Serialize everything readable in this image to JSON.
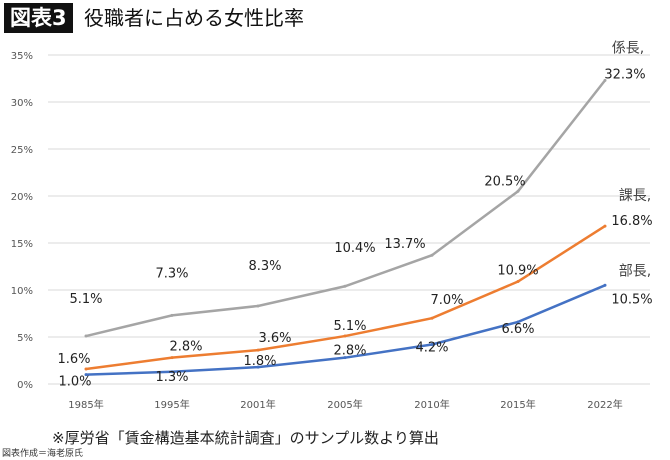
{
  "header": {
    "tag": "図表3",
    "title": "役職者に占める女性比率"
  },
  "footer": {
    "note": "※厚労省「賃金構造基本統計調査」のサンプル数より算出",
    "credit": "図表作成＝海老原氏"
  },
  "chart_data": {
    "type": "line",
    "title": "役職者に占める女性比率",
    "categories": [
      "1985年",
      "1995年",
      "2001年",
      "2005年",
      "2010年",
      "2015年",
      "2022年"
    ],
    "yticks": [
      "0%",
      "5%",
      "10%",
      "15%",
      "20%",
      "25%",
      "30%",
      "35%"
    ],
    "ylim": [
      0,
      35
    ],
    "grid": true,
    "series": [
      {
        "name": "係長,",
        "color": "#a5a5a5",
        "values": [
          5.1,
          7.3,
          8.3,
          10.4,
          13.7,
          20.5,
          32.3
        ],
        "labels": [
          "5.1%",
          "7.3%",
          "8.3%",
          "10.4%",
          "13.7%",
          "20.5%",
          "32.3%"
        ]
      },
      {
        "name": "課長,",
        "color": "#ed7d31",
        "values": [
          1.6,
          2.8,
          3.6,
          5.1,
          7.0,
          10.9,
          16.8
        ],
        "labels": [
          "1.6%",
          "2.8%",
          "3.6%",
          "5.1%",
          "7.0%",
          "10.9%",
          "16.8%"
        ]
      },
      {
        "name": "部長,",
        "color": "#4472c4",
        "values": [
          1.0,
          1.3,
          1.8,
          2.8,
          4.2,
          6.6,
          10.5
        ],
        "labels": [
          "1.0%",
          "1.3%",
          "1.8%",
          "2.8%",
          "4.2%",
          "6.6%",
          "10.5%"
        ]
      }
    ]
  }
}
